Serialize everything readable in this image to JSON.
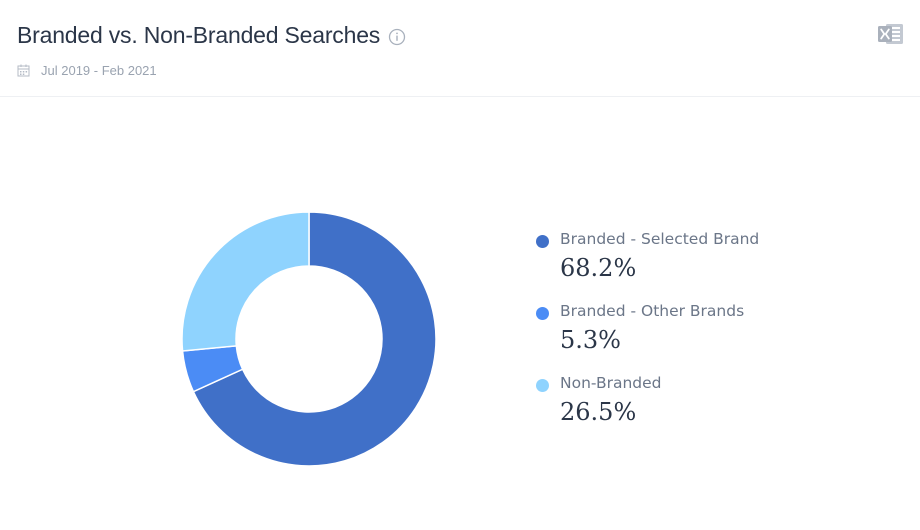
{
  "header": {
    "title": "Branded vs. Non-Branded Searches",
    "date_range": "Jul 2019 - Feb 2021",
    "info_icon": "info-icon",
    "calendar_icon": "calendar-icon",
    "export_icon": "excel-export-icon"
  },
  "chart_data": {
    "type": "pie",
    "variant": "donut",
    "title": "Branded vs. Non-Branded Searches",
    "slices": [
      {
        "label": "Branded - Selected Brand",
        "value": 68.2,
        "display": "68.2%",
        "color": "#4070c8"
      },
      {
        "label": "Branded - Other Brands",
        "value": 5.3,
        "display": "5.3%",
        "color": "#4b8cf5"
      },
      {
        "label": "Non-Branded",
        "value": 26.5,
        "display": "26.5%",
        "color": "#8fd3fe"
      }
    ],
    "legend_position": "right"
  }
}
